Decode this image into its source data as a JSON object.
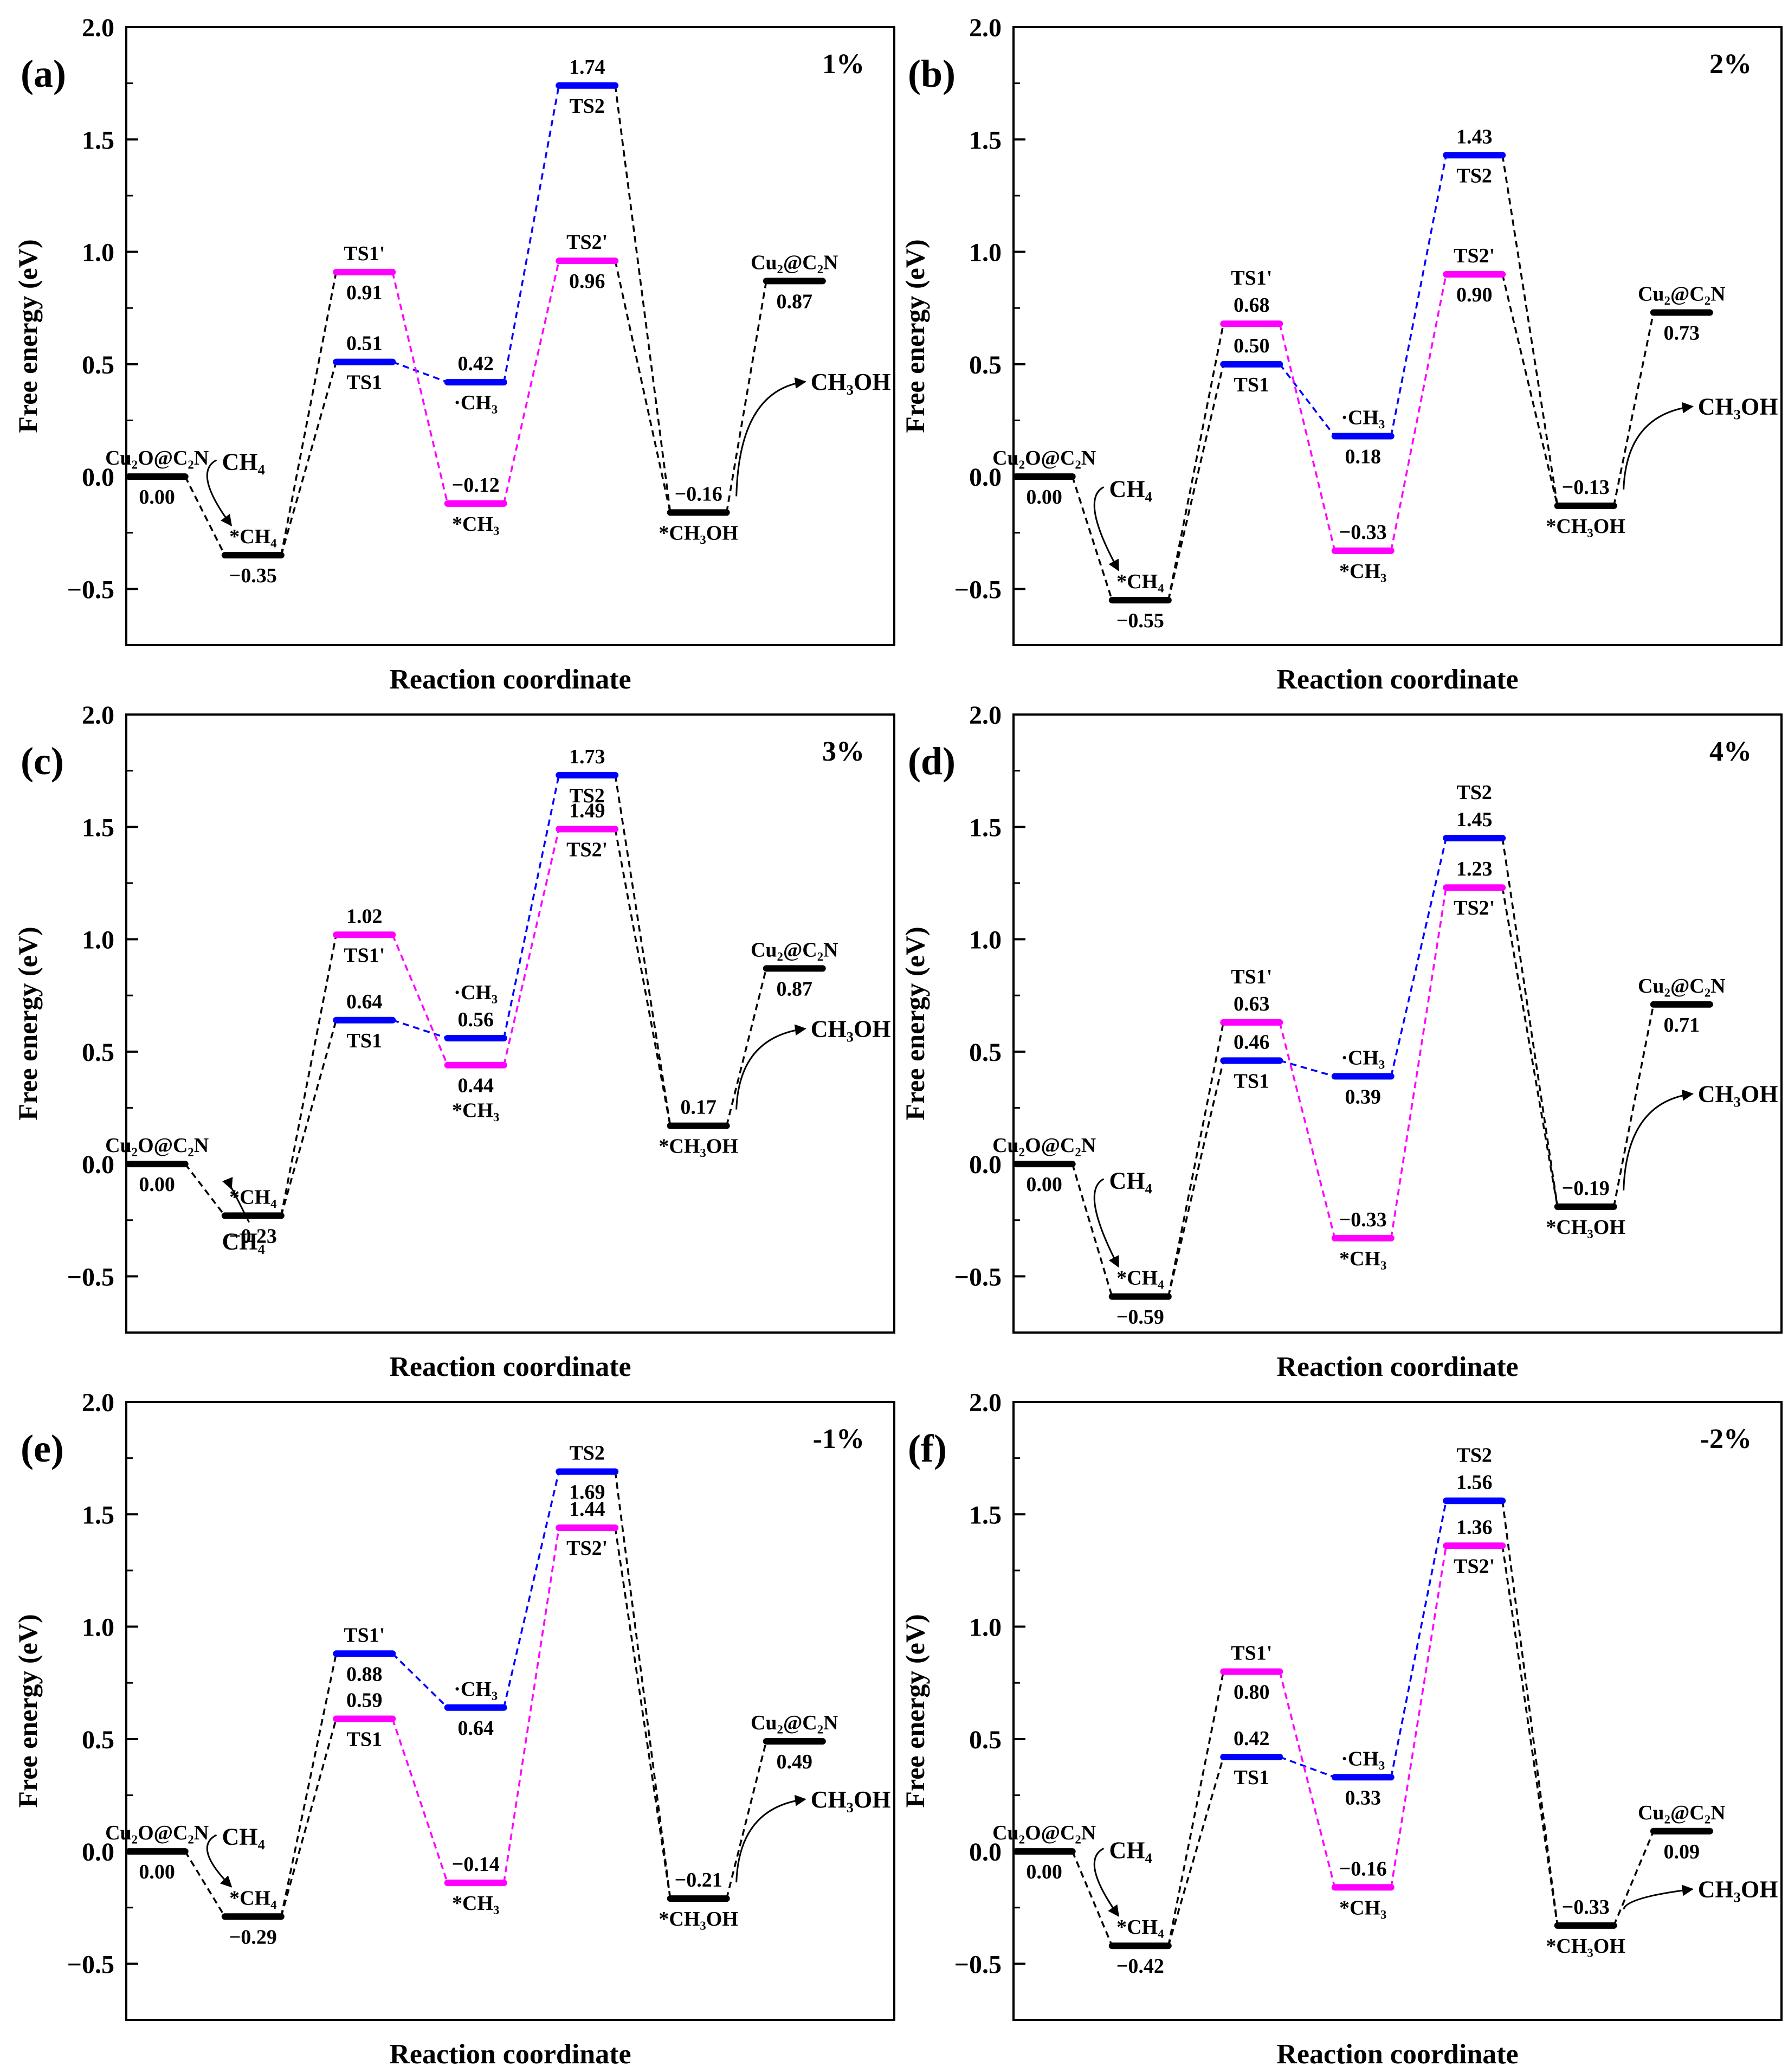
{
  "figure": {
    "x_axis_label": "Reaction coordinate",
    "y_axis_label": "Free energy (eV)",
    "y_ticks": [
      "2.0",
      "1.5",
      "1.0",
      "0.5",
      "0.0",
      "-0.5"
    ],
    "colors": {
      "main": "#000000",
      "path1": "#0000ff",
      "path2": "#ff00ff",
      "axis": "#000000"
    }
  },
  "chart_data": [
    {
      "type": "energy-profile",
      "panel": "(a)",
      "strain": "1%",
      "ylim": [
        -0.75,
        2.0
      ],
      "states": [
        {
          "key": "s0",
          "pos": 0,
          "value": 0.0,
          "color": "black",
          "name": "Cu₂O@C₂N",
          "name_side": "above",
          "value_side": "below"
        },
        {
          "key": "s1",
          "pos": 1,
          "value": -0.35,
          "color": "black",
          "name": "*CH₄",
          "name_side": "above",
          "value_side": "below"
        },
        {
          "key": "ts1",
          "pos": 2,
          "value": 0.51,
          "color": "blue",
          "name": "TS1",
          "name_side": "below",
          "value_side": "above"
        },
        {
          "key": "ts1p",
          "pos": 2,
          "value": 0.91,
          "color": "magenta",
          "name": "TS1'",
          "name_side": "above",
          "value_side": "below"
        },
        {
          "key": "ch3g",
          "pos": 3,
          "value": 0.42,
          "color": "blue",
          "name": "·CH₃",
          "name_side": "below",
          "value_side": "above"
        },
        {
          "key": "ch3s",
          "pos": 3,
          "value": -0.12,
          "color": "magenta",
          "name": "*CH₃",
          "name_side": "below",
          "value_side": "above"
        },
        {
          "key": "ts2",
          "pos": 4,
          "value": 1.74,
          "color": "blue",
          "name": "TS2",
          "name_side": "below",
          "value_side": "above"
        },
        {
          "key": "ts2p",
          "pos": 4,
          "value": 0.96,
          "color": "magenta",
          "name": "TS2'",
          "name_side": "above",
          "value_side": "below"
        },
        {
          "key": "s5",
          "pos": 5,
          "value": -0.16,
          "color": "black",
          "name": "*CH₃OH",
          "name_side": "below",
          "value_side": "above"
        },
        {
          "key": "s6",
          "pos": 6,
          "value": 0.87,
          "color": "black",
          "name": "Cu₂@C₂N",
          "name_side": "above",
          "value_side": "below"
        }
      ],
      "connections": [
        [
          "s0",
          "s1",
          "black"
        ],
        [
          "s1",
          "ts1",
          "black"
        ],
        [
          "s1",
          "ts1p",
          "black"
        ],
        [
          "ts1",
          "ch3g",
          "blue"
        ],
        [
          "ts1p",
          "ch3s",
          "magenta"
        ],
        [
          "ch3g",
          "ts2",
          "blue"
        ],
        [
          "ch3s",
          "ts2p",
          "magenta"
        ],
        [
          "ts2",
          "s5",
          "black"
        ],
        [
          "ts2p",
          "s5",
          "black"
        ],
        [
          "s5",
          "s6",
          "black"
        ]
      ],
      "annotations": [
        {
          "text": "CH₄",
          "type": "in",
          "dy": 0.03
        },
        {
          "text": "CH₃OH",
          "type": "out",
          "dy": 0.41
        }
      ]
    },
    {
      "type": "energy-profile",
      "panel": "(b)",
      "strain": "2%",
      "ylim": [
        -0.75,
        2.0
      ],
      "states": [
        {
          "key": "s0",
          "pos": 0,
          "value": 0.0,
          "color": "black",
          "name": "Cu₂O@C₂N",
          "name_side": "above",
          "value_side": "below"
        },
        {
          "key": "s1",
          "pos": 1,
          "value": -0.55,
          "color": "black",
          "name": "*CH₄",
          "name_side": "above",
          "value_side": "below"
        },
        {
          "key": "ts1",
          "pos": 2,
          "value": 0.5,
          "color": "blue",
          "name": "TS1",
          "name_side": "below",
          "value_side": "above"
        },
        {
          "key": "ts1p",
          "pos": 2,
          "value": 0.68,
          "color": "magenta",
          "name": "TS1'",
          "name_side": "above2",
          "value_side": "above"
        },
        {
          "key": "ch3g",
          "pos": 3,
          "value": 0.18,
          "color": "blue",
          "name": "·CH₃",
          "name_side": "above",
          "value_side": "below"
        },
        {
          "key": "ch3s",
          "pos": 3,
          "value": -0.33,
          "color": "magenta",
          "name": "*CH₃",
          "name_side": "below",
          "value_side": "above"
        },
        {
          "key": "ts2",
          "pos": 4,
          "value": 1.43,
          "color": "blue",
          "name": "TS2",
          "name_side": "below",
          "value_side": "above"
        },
        {
          "key": "ts2p",
          "pos": 4,
          "value": 0.9,
          "color": "magenta",
          "name": "TS2'",
          "name_side": "above",
          "value_side": "below"
        },
        {
          "key": "s5",
          "pos": 5,
          "value": -0.13,
          "color": "black",
          "name": "*CH₃OH",
          "name_side": "below",
          "value_side": "above"
        },
        {
          "key": "s6",
          "pos": 6,
          "value": 0.73,
          "color": "black",
          "name": "Cu₂@C₂N",
          "name_side": "above",
          "value_side": "below"
        }
      ],
      "connections": [
        [
          "s0",
          "s1",
          "black"
        ],
        [
          "s1",
          "ts1",
          "black"
        ],
        [
          "s1",
          "ts1p",
          "black"
        ],
        [
          "ts1",
          "ch3g",
          "blue"
        ],
        [
          "ts1p",
          "ch3s",
          "magenta"
        ],
        [
          "ch3g",
          "ts2",
          "blue"
        ],
        [
          "ch3s",
          "ts2p",
          "magenta"
        ],
        [
          "ts2",
          "s5",
          "black"
        ],
        [
          "ts2p",
          "s5",
          "black"
        ],
        [
          "s5",
          "s6",
          "black"
        ]
      ],
      "annotations": [
        {
          "text": "CH₄",
          "type": "in",
          "dy": -0.09
        },
        {
          "text": "CH₃OH",
          "type": "out",
          "dy": 0.3
        }
      ]
    },
    {
      "type": "energy-profile",
      "panel": "(c)",
      "strain": "3%",
      "ylim": [
        -0.75,
        2.0
      ],
      "states": [
        {
          "key": "s0",
          "pos": 0,
          "value": 0.0,
          "color": "black",
          "name": "Cu₂O@C₂N",
          "name_side": "above",
          "value_side": "below"
        },
        {
          "key": "s1",
          "pos": 1,
          "value": -0.23,
          "color": "black",
          "name": "*CH₄",
          "name_side": "above",
          "value_side": "below"
        },
        {
          "key": "ts1",
          "pos": 2,
          "value": 0.64,
          "color": "blue",
          "name": "TS1",
          "name_side": "below",
          "value_side": "above"
        },
        {
          "key": "ts1p",
          "pos": 2,
          "value": 1.02,
          "color": "magenta",
          "name": "TS1'",
          "name_side": "below",
          "value_side": "above"
        },
        {
          "key": "ch3g",
          "pos": 3,
          "value": 0.56,
          "color": "blue",
          "name": "·CH₃",
          "name_side": "above2",
          "value_side": "above"
        },
        {
          "key": "ch3s",
          "pos": 3,
          "value": 0.44,
          "color": "magenta",
          "name": "*CH₃",
          "name_side": "below2",
          "value_side": "below"
        },
        {
          "key": "ts2",
          "pos": 4,
          "value": 1.73,
          "color": "blue",
          "name": "TS2",
          "name_side": "below",
          "value_side": "above"
        },
        {
          "key": "ts2p",
          "pos": 4,
          "value": 1.49,
          "color": "magenta",
          "name": "TS2'",
          "name_side": "below",
          "value_side": "above"
        },
        {
          "key": "s5",
          "pos": 5,
          "value": 0.17,
          "color": "black",
          "name": "*CH₃OH",
          "name_side": "below",
          "value_side": "above"
        },
        {
          "key": "s6",
          "pos": 6,
          "value": 0.87,
          "color": "black",
          "name": "Cu₂@C₂N",
          "name_side": "above",
          "value_side": "below"
        }
      ],
      "connections": [
        [
          "s0",
          "s1",
          "black"
        ],
        [
          "s1",
          "ts1",
          "black"
        ],
        [
          "s1",
          "ts1p",
          "black"
        ],
        [
          "ts1",
          "ch3g",
          "blue"
        ],
        [
          "ts1p",
          "ch3s",
          "magenta"
        ],
        [
          "ch3g",
          "ts2",
          "blue"
        ],
        [
          "ch3s",
          "ts2p",
          "magenta"
        ],
        [
          "ts2",
          "s5",
          "black"
        ],
        [
          "ts2p",
          "s5",
          "black"
        ],
        [
          "s5",
          "s6",
          "black"
        ]
      ],
      "annotations": [
        {
          "text": "CH₄",
          "type": "in-below",
          "dy": -0.38
        },
        {
          "text": "CH₃OH",
          "type": "out",
          "dy": 0.59
        }
      ]
    },
    {
      "type": "energy-profile",
      "panel": "(d)",
      "strain": "4%",
      "ylim": [
        -0.75,
        2.0
      ],
      "states": [
        {
          "key": "s0",
          "pos": 0,
          "value": 0.0,
          "color": "black",
          "name": "Cu₂O@C₂N",
          "name_side": "above",
          "value_side": "below"
        },
        {
          "key": "s1",
          "pos": 1,
          "value": -0.59,
          "color": "black",
          "name": "*CH₄",
          "name_side": "above",
          "value_side": "below"
        },
        {
          "key": "ts1",
          "pos": 2,
          "value": 0.46,
          "color": "blue",
          "name": "TS1",
          "name_side": "below",
          "value_side": "above"
        },
        {
          "key": "ts1p",
          "pos": 2,
          "value": 0.63,
          "color": "magenta",
          "name": "TS1'",
          "name_side": "above2",
          "value_side": "above"
        },
        {
          "key": "ch3g",
          "pos": 3,
          "value": 0.39,
          "color": "blue",
          "name": "·CH₃",
          "name_side": "above",
          "value_side": "below"
        },
        {
          "key": "ch3s",
          "pos": 3,
          "value": -0.33,
          "color": "magenta",
          "name": "*CH₃",
          "name_side": "below",
          "value_side": "above"
        },
        {
          "key": "ts2",
          "pos": 4,
          "value": 1.45,
          "color": "blue",
          "name": "TS2",
          "name_side": "above2",
          "value_side": "above"
        },
        {
          "key": "ts2p",
          "pos": 4,
          "value": 1.23,
          "color": "magenta",
          "name": "TS2'",
          "name_side": "below",
          "value_side": "above"
        },
        {
          "key": "s5",
          "pos": 5,
          "value": -0.19,
          "color": "black",
          "name": "*CH₃OH",
          "name_side": "below",
          "value_side": "above"
        },
        {
          "key": "s6",
          "pos": 6,
          "value": 0.71,
          "color": "black",
          "name": "Cu₂@C₂N",
          "name_side": "above",
          "value_side": "below"
        }
      ],
      "connections": [
        [
          "s0",
          "s1",
          "black"
        ],
        [
          "s1",
          "ts1",
          "black"
        ],
        [
          "s1",
          "ts1p",
          "black"
        ],
        [
          "ts1",
          "ch3g",
          "blue"
        ],
        [
          "ts1p",
          "ch3s",
          "magenta"
        ],
        [
          "ch3g",
          "ts2",
          "blue"
        ],
        [
          "ch3s",
          "ts2p",
          "magenta"
        ],
        [
          "ts2",
          "s5",
          "black"
        ],
        [
          "ts2p",
          "s5",
          "black"
        ],
        [
          "s5",
          "s6",
          "black"
        ]
      ],
      "annotations": [
        {
          "text": "CH₄",
          "type": "in",
          "dy": -0.11
        },
        {
          "text": "CH₃OH",
          "type": "out",
          "dy": 0.3
        }
      ]
    },
    {
      "type": "energy-profile",
      "panel": "(e)",
      "strain": "-1%",
      "ylim": [
        -0.75,
        2.0
      ],
      "states": [
        {
          "key": "s0",
          "pos": 0,
          "value": 0.0,
          "color": "black",
          "name": "Cu₂O@C₂N",
          "name_side": "above",
          "value_side": "below"
        },
        {
          "key": "s1",
          "pos": 1,
          "value": -0.29,
          "color": "black",
          "name": "*CH₄",
          "name_side": "above",
          "value_side": "below"
        },
        {
          "key": "ts1",
          "pos": 2,
          "value": 0.88,
          "color": "blue",
          "name": "TS1'",
          "name_side": "above",
          "value_side": "below"
        },
        {
          "key": "ts1p",
          "pos": 2,
          "value": 0.59,
          "color": "magenta",
          "name": "TS1",
          "name_side": "below",
          "value_side": "above"
        },
        {
          "key": "ch3g",
          "pos": 3,
          "value": 0.64,
          "color": "blue",
          "name": "·CH₃",
          "name_side": "above",
          "value_side": "below"
        },
        {
          "key": "ch3s",
          "pos": 3,
          "value": -0.14,
          "color": "magenta",
          "name": "*CH₃",
          "name_side": "below",
          "value_side": "above"
        },
        {
          "key": "ts2",
          "pos": 4,
          "value": 1.69,
          "color": "blue",
          "name": "TS2",
          "name_side": "above",
          "value_side": "below"
        },
        {
          "key": "ts2p",
          "pos": 4,
          "value": 1.44,
          "color": "magenta",
          "name": "TS2'",
          "name_side": "below",
          "value_side": "above"
        },
        {
          "key": "s5",
          "pos": 5,
          "value": -0.21,
          "color": "black",
          "name": "*CH₃OH",
          "name_side": "below",
          "value_side": "above"
        },
        {
          "key": "s6",
          "pos": 6,
          "value": 0.49,
          "color": "black",
          "name": "Cu₂@C₂N",
          "name_side": "above",
          "value_side": "below"
        }
      ],
      "connections": [
        [
          "s0",
          "s1",
          "black"
        ],
        [
          "s1",
          "ts1",
          "black"
        ],
        [
          "s1",
          "ts1p",
          "black"
        ],
        [
          "ts1",
          "ch3g",
          "blue"
        ],
        [
          "ts1p",
          "ch3s",
          "magenta"
        ],
        [
          "ch3g",
          "ts2",
          "blue"
        ],
        [
          "ch3s",
          "ts2p",
          "magenta"
        ],
        [
          "ts2",
          "s5",
          "black"
        ],
        [
          "ts2p",
          "s5",
          "black"
        ],
        [
          "s5",
          "s6",
          "black"
        ]
      ],
      "annotations": [
        {
          "text": "CH₄",
          "type": "in",
          "dy": 0.03
        },
        {
          "text": "CH₃OH",
          "type": "out",
          "dy": 0.22
        }
      ]
    },
    {
      "type": "energy-profile",
      "panel": "(f)",
      "strain": "-2%",
      "ylim": [
        -0.75,
        2.0
      ],
      "states": [
        {
          "key": "s0",
          "pos": 0,
          "value": 0.0,
          "color": "black",
          "name": "Cu₂O@C₂N",
          "name_side": "above",
          "value_side": "below"
        },
        {
          "key": "s1",
          "pos": 1,
          "value": -0.42,
          "color": "black",
          "name": "*CH₄",
          "name_side": "above",
          "value_side": "below"
        },
        {
          "key": "ts1",
          "pos": 2,
          "value": 0.42,
          "color": "blue",
          "name": "TS1",
          "name_side": "below",
          "value_side": "above"
        },
        {
          "key": "ts1p",
          "pos": 2,
          "value": 0.8,
          "color": "magenta",
          "name": "TS1'",
          "name_side": "above",
          "value_side": "below"
        },
        {
          "key": "ch3g",
          "pos": 3,
          "value": 0.33,
          "color": "blue",
          "name": "·CH₃",
          "name_side": "above",
          "value_side": "below"
        },
        {
          "key": "ch3s",
          "pos": 3,
          "value": -0.16,
          "color": "magenta",
          "name": "*CH₃",
          "name_side": "below",
          "value_side": "above"
        },
        {
          "key": "ts2",
          "pos": 4,
          "value": 1.56,
          "color": "blue",
          "name": "TS2",
          "name_side": "above2",
          "value_side": "above"
        },
        {
          "key": "ts2p",
          "pos": 4,
          "value": 1.36,
          "color": "magenta",
          "name": "TS2'",
          "name_side": "below",
          "value_side": "above"
        },
        {
          "key": "s5",
          "pos": 5,
          "value": -0.33,
          "color": "black",
          "name": "*CH₃OH",
          "name_side": "below",
          "value_side": "above"
        },
        {
          "key": "s6",
          "pos": 6,
          "value": 0.09,
          "color": "black",
          "name": "Cu₂@C₂N",
          "name_side": "above",
          "value_side": "below"
        }
      ],
      "connections": [
        [
          "s0",
          "s1",
          "black"
        ],
        [
          "s1",
          "ts1",
          "black"
        ],
        [
          "s1",
          "ts1p",
          "black"
        ],
        [
          "ts1",
          "ch3g",
          "blue"
        ],
        [
          "ts1p",
          "ch3s",
          "magenta"
        ],
        [
          "ch3g",
          "ts2",
          "blue"
        ],
        [
          "ch3s",
          "ts2p",
          "magenta"
        ],
        [
          "ts2",
          "s5",
          "black"
        ],
        [
          "ts2p",
          "s5",
          "black"
        ],
        [
          "s5",
          "s6",
          "black"
        ]
      ],
      "annotations": [
        {
          "text": "CH₄",
          "type": "in",
          "dy": -0.03
        },
        {
          "text": "CH₃OH",
          "type": "out-below",
          "dy": -0.18
        }
      ]
    }
  ]
}
